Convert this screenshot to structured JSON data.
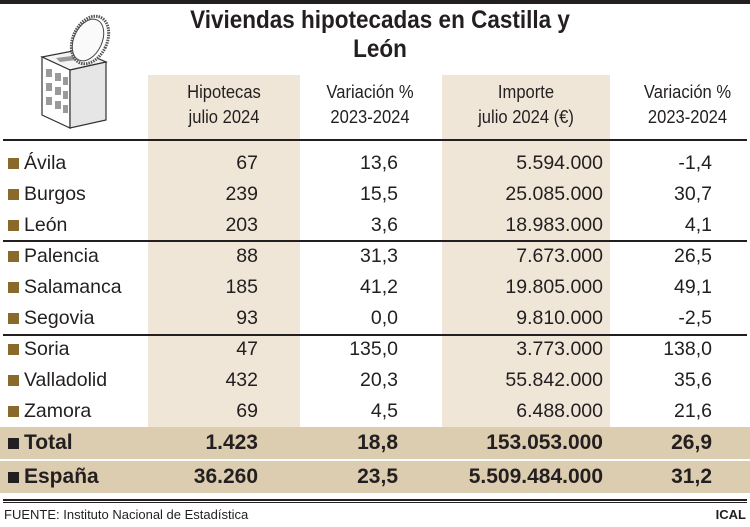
{
  "title": "Viviendas hipotecadas en Castilla y León",
  "icon": "building-coin-icon",
  "colors": {
    "band": "#efe6d8",
    "summary_bg": "#dccdb0",
    "bullet": "#8a6a2a"
  },
  "chart_data": {
    "type": "table",
    "title": "Viviendas hipotecadas en Castilla y León",
    "columns": [
      "",
      "Hipotecas julio 2024",
      "Variación % 2023-2024",
      "Importe julio 2024 (€)",
      "Variación % 2023-2024"
    ],
    "headers": [
      {
        "l1": "Hipotecas",
        "l2": "julio 2024"
      },
      {
        "l1": "Variación %",
        "l2": "2023-2024"
      },
      {
        "l1": "Importe",
        "l2": "julio 2024 (€)"
      },
      {
        "l1": "Variación %",
        "l2": "2023-2024"
      }
    ],
    "rows": [
      {
        "name": "Ávila",
        "hipotecas": "67",
        "var_hip": "13,6",
        "importe": "5.594.000",
        "var_imp": "-1,4"
      },
      {
        "name": "Burgos",
        "hipotecas": "239",
        "var_hip": "15,5",
        "importe": "25.085.000",
        "var_imp": "30,7"
      },
      {
        "name": "León",
        "hipotecas": "203",
        "var_hip": "3,6",
        "importe": "18.983.000",
        "var_imp": "4,1"
      },
      {
        "name": "Palencia",
        "hipotecas": "88",
        "var_hip": "31,3",
        "importe": "7.673.000",
        "var_imp": "26,5"
      },
      {
        "name": "Salamanca",
        "hipotecas": "185",
        "var_hip": "41,2",
        "importe": "19.805.000",
        "var_imp": "49,1"
      },
      {
        "name": "Segovia",
        "hipotecas": "93",
        "var_hip": "0,0",
        "importe": "9.810.000",
        "var_imp": "-2,5"
      },
      {
        "name": "Soria",
        "hipotecas": "47",
        "var_hip": "135,0",
        "importe": "3.773.000",
        "var_imp": "138,0"
      },
      {
        "name": "Valladolid",
        "hipotecas": "432",
        "var_hip": "20,3",
        "importe": "55.842.000",
        "var_imp": "35,6"
      },
      {
        "name": "Zamora",
        "hipotecas": "69",
        "var_hip": "4,5",
        "importe": "6.488.000",
        "var_imp": "21,6"
      }
    ],
    "summary": [
      {
        "name": "Total",
        "hipotecas": "1.423",
        "var_hip": "18,8",
        "importe": "153.053.000",
        "var_imp": "26,9"
      },
      {
        "name": "España",
        "hipotecas": "36.260",
        "var_hip": "23,5",
        "importe": "5.509.484.000",
        "var_imp": "31,2"
      }
    ]
  },
  "footer": {
    "source": "FUENTE: Instituto Nacional de Estadística",
    "credit": "ICAL"
  }
}
